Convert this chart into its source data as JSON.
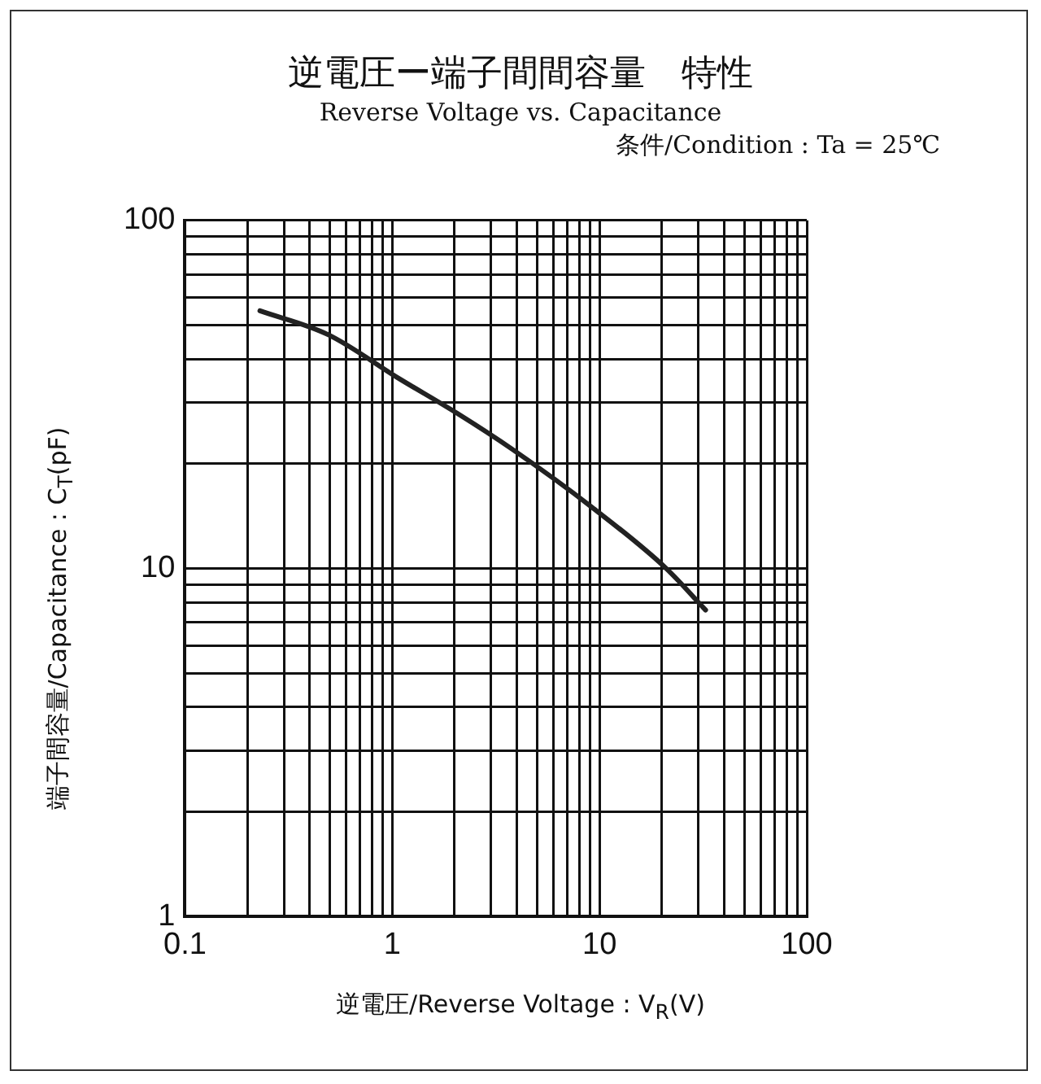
{
  "chart_data": {
    "type": "line",
    "title": "逆電圧ー端子間間容量　特性",
    "subtitle": "Reverse Voltage vs. Capacitance",
    "annotations": [
      "条件/Condition : Ta = 25℃"
    ],
    "xlabel": "逆電圧/Reverse Voltage : V$_{R}$(V)",
    "ylabel": "端子間容量/Capacitance : C$_{T}$(pF)",
    "log": "xy",
    "grid": true,
    "legend": false,
    "marker": "none",
    "line_style": "solid",
    "xlim": [
      0.1,
      100
    ],
    "ylim": [
      1,
      100
    ],
    "xticks": [
      {
        "value": 0.1,
        "label": "0.1"
      },
      {
        "value": 0.2,
        "label": null
      },
      {
        "value": 0.3,
        "label": null
      },
      {
        "value": 0.4,
        "label": null
      },
      {
        "value": 0.5,
        "label": null
      },
      {
        "value": 0.6,
        "label": null
      },
      {
        "value": 0.7,
        "label": null
      },
      {
        "value": 0.8,
        "label": null
      },
      {
        "value": 0.9,
        "label": null
      },
      {
        "value": 1,
        "label": "1"
      },
      {
        "value": 2,
        "label": null
      },
      {
        "value": 3,
        "label": null
      },
      {
        "value": 4,
        "label": null
      },
      {
        "value": 5,
        "label": null
      },
      {
        "value": 6,
        "label": null
      },
      {
        "value": 7,
        "label": null
      },
      {
        "value": 8,
        "label": null
      },
      {
        "value": 9,
        "label": null
      },
      {
        "value": 10,
        "label": "10"
      },
      {
        "value": 20,
        "label": null
      },
      {
        "value": 30,
        "label": null
      },
      {
        "value": 40,
        "label": null
      },
      {
        "value": 50,
        "label": null
      },
      {
        "value": 60,
        "label": null
      },
      {
        "value": 70,
        "label": null
      },
      {
        "value": 80,
        "label": null
      },
      {
        "value": 90,
        "label": null
      },
      {
        "value": 100,
        "label": "100"
      }
    ],
    "yticks": [
      {
        "value": 1,
        "label": "1"
      },
      {
        "value": 2,
        "label": null
      },
      {
        "value": 3,
        "label": null
      },
      {
        "value": 4,
        "label": null
      },
      {
        "value": 5,
        "label": null
      },
      {
        "value": 6,
        "label": null
      },
      {
        "value": 7,
        "label": null
      },
      {
        "value": 8,
        "label": null
      },
      {
        "value": 9,
        "label": null
      },
      {
        "value": 10,
        "label": "10"
      },
      {
        "value": 20,
        "label": null
      },
      {
        "value": 30,
        "label": null
      },
      {
        "value": 40,
        "label": null
      },
      {
        "value": 50,
        "label": null
      },
      {
        "value": 60,
        "label": null
      },
      {
        "value": 70,
        "label": null
      },
      {
        "value": 80,
        "label": null
      },
      {
        "value": 90,
        "label": null
      },
      {
        "value": 100,
        "label": "100"
      }
    ],
    "x": [
      0.23,
      0.49,
      1.09,
      2.04,
      3.8,
      9.2,
      21,
      32.5
    ],
    "series": [
      {
        "color": "#222222",
        "values": [
          55,
          47,
          35,
          28,
          22,
          15,
          10,
          7.6
        ]
      }
    ]
  }
}
